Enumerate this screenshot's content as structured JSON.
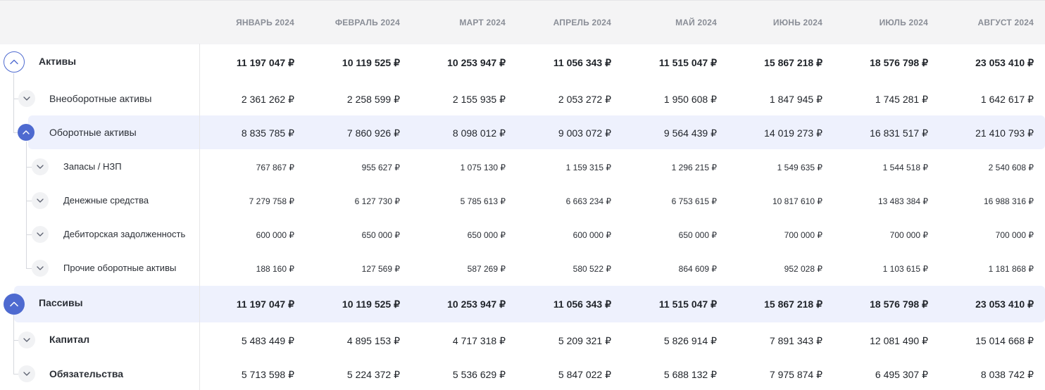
{
  "header": {
    "months": [
      "ЯНВАРЬ 2024",
      "ФЕВРАЛЬ 2024",
      "МАРТ 2024",
      "АПРЕЛЬ 2024",
      "МАЙ 2024",
      "ИЮНЬ 2024",
      "ИЮЛЬ 2024",
      "АВГУСТ 2024"
    ]
  },
  "rows": [
    {
      "label": "Активы",
      "values": [
        "11 197 047 ₽",
        "10 119 525 ₽",
        "10 253 947 ₽",
        "11 056 343 ₽",
        "11 515 047 ₽",
        "15 867 218 ₽",
        "18 576 798 ₽",
        "23 053 410 ₽"
      ]
    },
    {
      "label": "Внеоборотные активы",
      "values": [
        "2 361 262 ₽",
        "2 258 599 ₽",
        "2 155 935 ₽",
        "2 053 272 ₽",
        "1 950 608 ₽",
        "1 847 945 ₽",
        "1 745 281 ₽",
        "1 642 617 ₽"
      ]
    },
    {
      "label": "Оборотные активы",
      "values": [
        "8 835 785 ₽",
        "7 860 926 ₽",
        "8 098 012 ₽",
        "9 003 072 ₽",
        "9 564 439 ₽",
        "14 019 273 ₽",
        "16 831 517 ₽",
        "21 410 793 ₽"
      ]
    },
    {
      "label": "Запасы / НЗП",
      "values": [
        "767 867 ₽",
        "955 627 ₽",
        "1 075 130 ₽",
        "1 159 315 ₽",
        "1 296 215 ₽",
        "1 549 635 ₽",
        "1 544 518 ₽",
        "2 540 608 ₽"
      ]
    },
    {
      "label": "Денежные средства",
      "values": [
        "7 279 758 ₽",
        "6 127 730 ₽",
        "5 785 613 ₽",
        "6 663 234 ₽",
        "6 753 615 ₽",
        "10 817 610 ₽",
        "13 483 384 ₽",
        "16 988 316 ₽"
      ]
    },
    {
      "label": "Дебиторская задолженность",
      "values": [
        "600 000 ₽",
        "650 000 ₽",
        "650 000 ₽",
        "600 000 ₽",
        "650 000 ₽",
        "700 000 ₽",
        "700 000 ₽",
        "700 000 ₽"
      ]
    },
    {
      "label": "Прочие оборотные активы",
      "values": [
        "188 160 ₽",
        "127 569 ₽",
        "587 269 ₽",
        "580 522 ₽",
        "864 609 ₽",
        "952 028 ₽",
        "1 103 615 ₽",
        "1 181 868 ₽"
      ]
    },
    {
      "label": "Пассивы",
      "values": [
        "11 197 047 ₽",
        "10 119 525 ₽",
        "10 253 947 ₽",
        "11 056 343 ₽",
        "11 515 047 ₽",
        "15 867 218 ₽",
        "18 576 798 ₽",
        "23 053 410 ₽"
      ]
    },
    {
      "label": "Капитал",
      "values": [
        "5 483 449 ₽",
        "4 895 153 ₽",
        "4 717 318 ₽",
        "5 209 321 ₽",
        "5 826 914 ₽",
        "7 891 343 ₽",
        "12 081 490 ₽",
        "15 014 668 ₽"
      ]
    },
    {
      "label": "Обязательства",
      "values": [
        "5 713 598 ₽",
        "5 224 372 ₽",
        "5 536 629 ₽",
        "5 847 022 ₽",
        "5 688 132 ₽",
        "7 975 874 ₽",
        "6 495 307 ₽",
        "8 038 742 ₽"
      ]
    }
  ]
}
